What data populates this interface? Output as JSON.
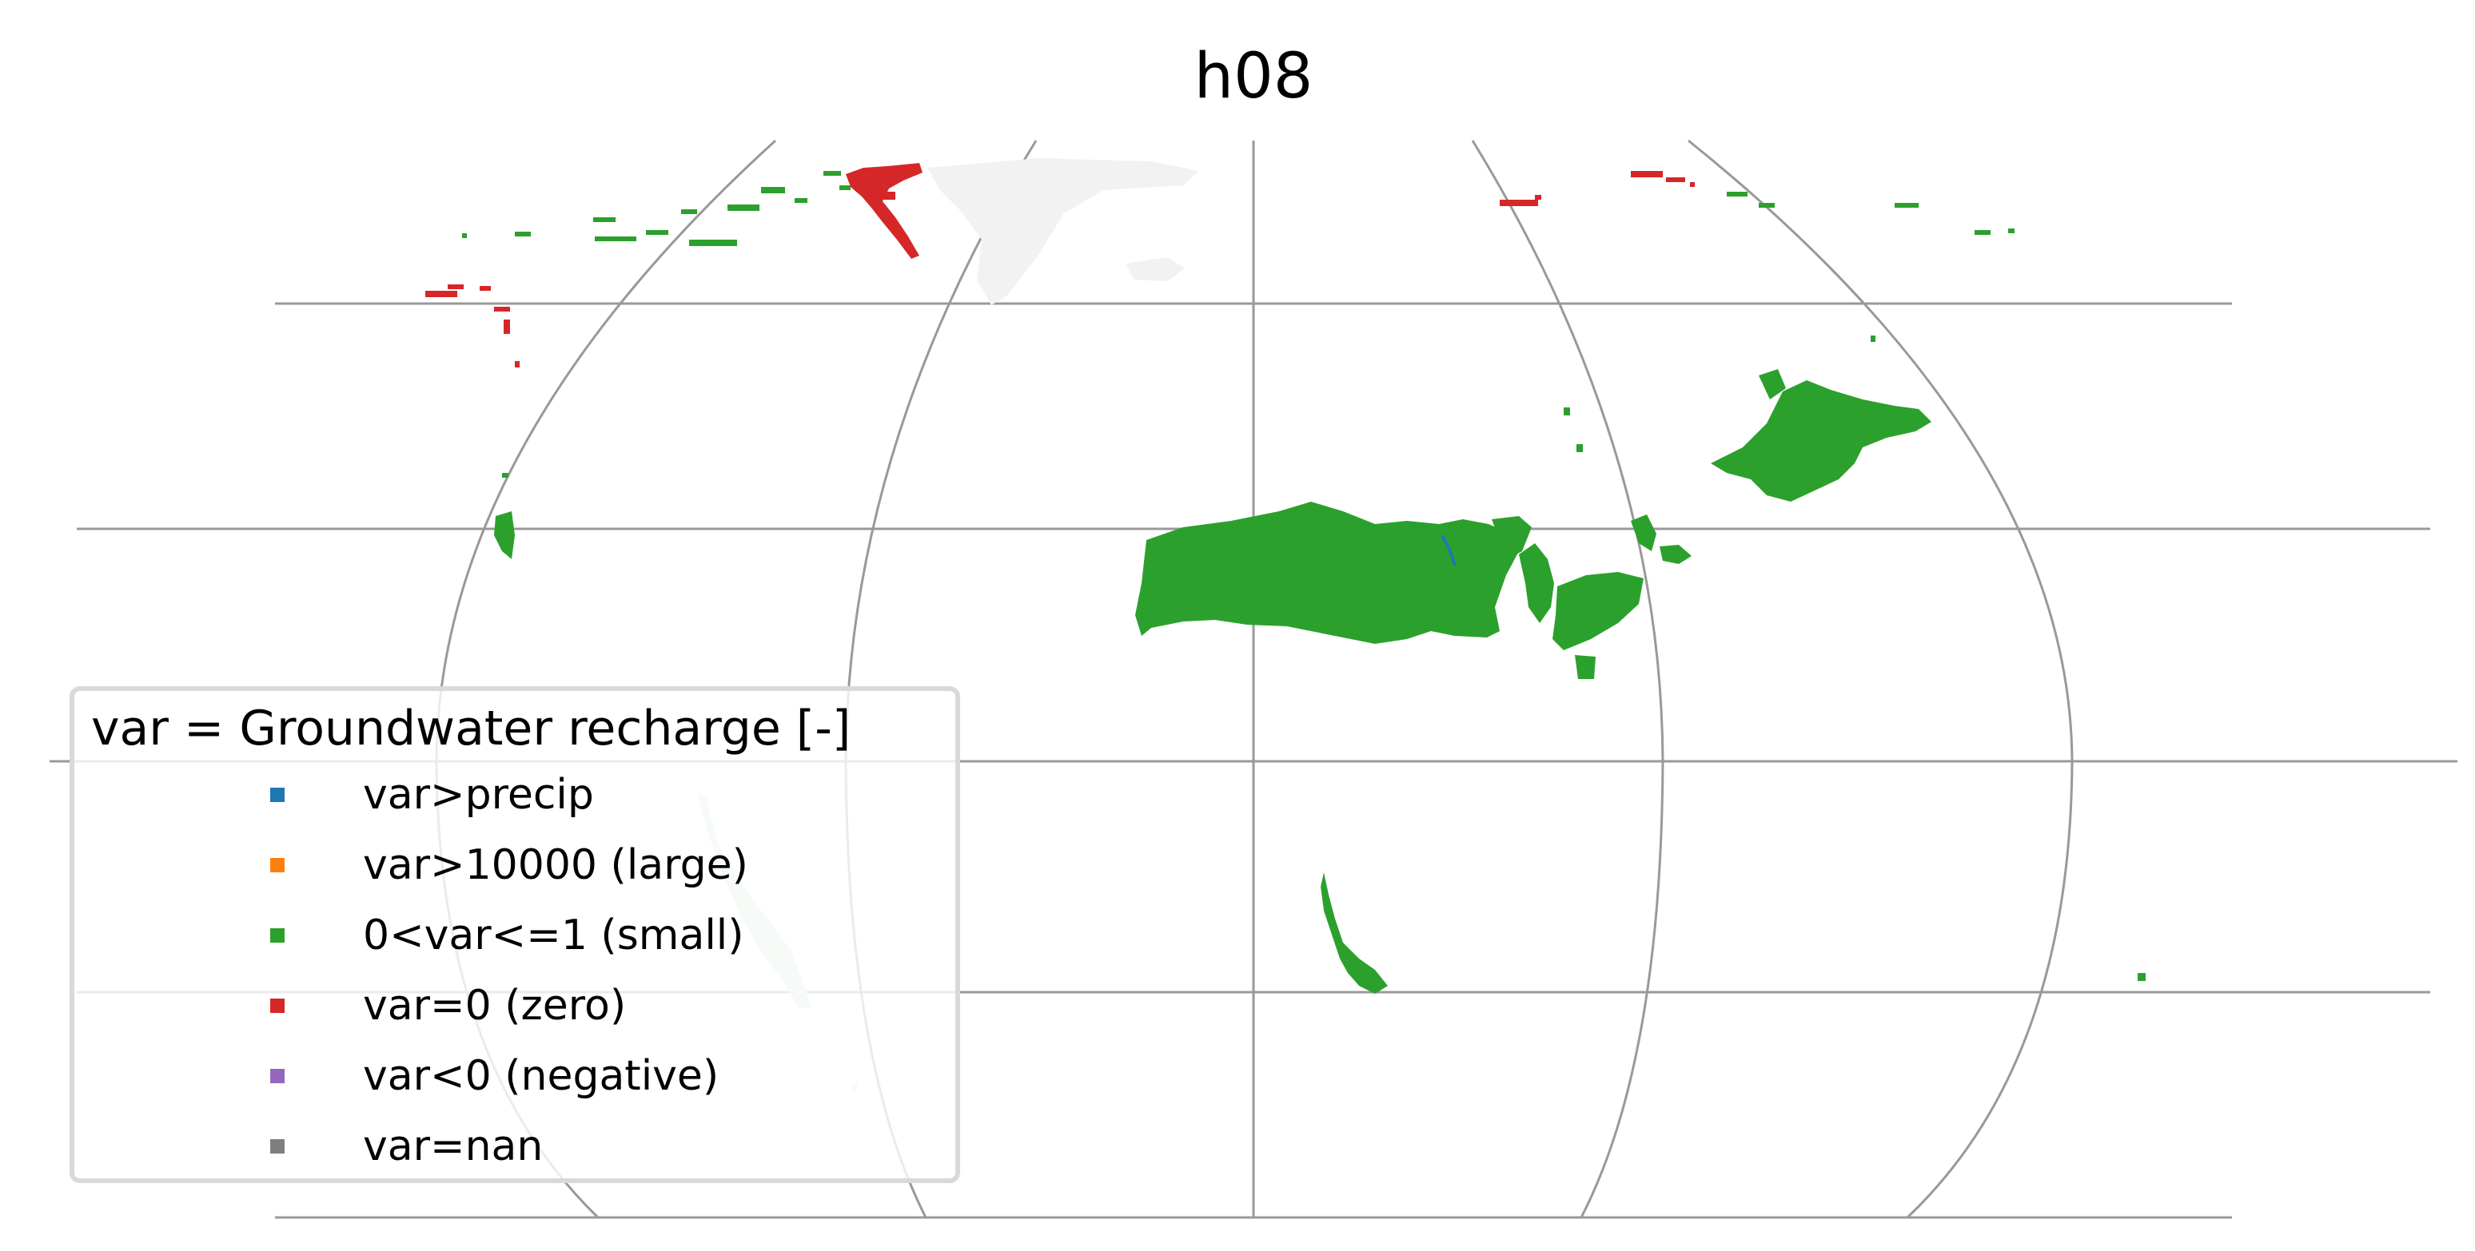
{
  "title": "h08",
  "legend": {
    "title": "var = Groundwater recharge [-]",
    "placement": "lower-left",
    "entries": [
      {
        "label": "var>precip",
        "color": "#1f77b4"
      },
      {
        "label": "var>10000 (large)",
        "color": "#ff7f0e"
      },
      {
        "label": "0<var<=1 (small)",
        "color": "#2ca02c"
      },
      {
        "label": "var=0 (zero)",
        "color": "#d62728"
      },
      {
        "label": "var<0 (negative)",
        "color": "#9467bd"
      },
      {
        "label": "var=nan",
        "color": "#7f7f7f"
      }
    ]
  },
  "map": {
    "projection": "robinson-like global map",
    "gridlines": true,
    "gridline_color": "#999999",
    "land_background_color": "#f2f2f2",
    "faint_region_color": "#d4ecd4"
  }
}
